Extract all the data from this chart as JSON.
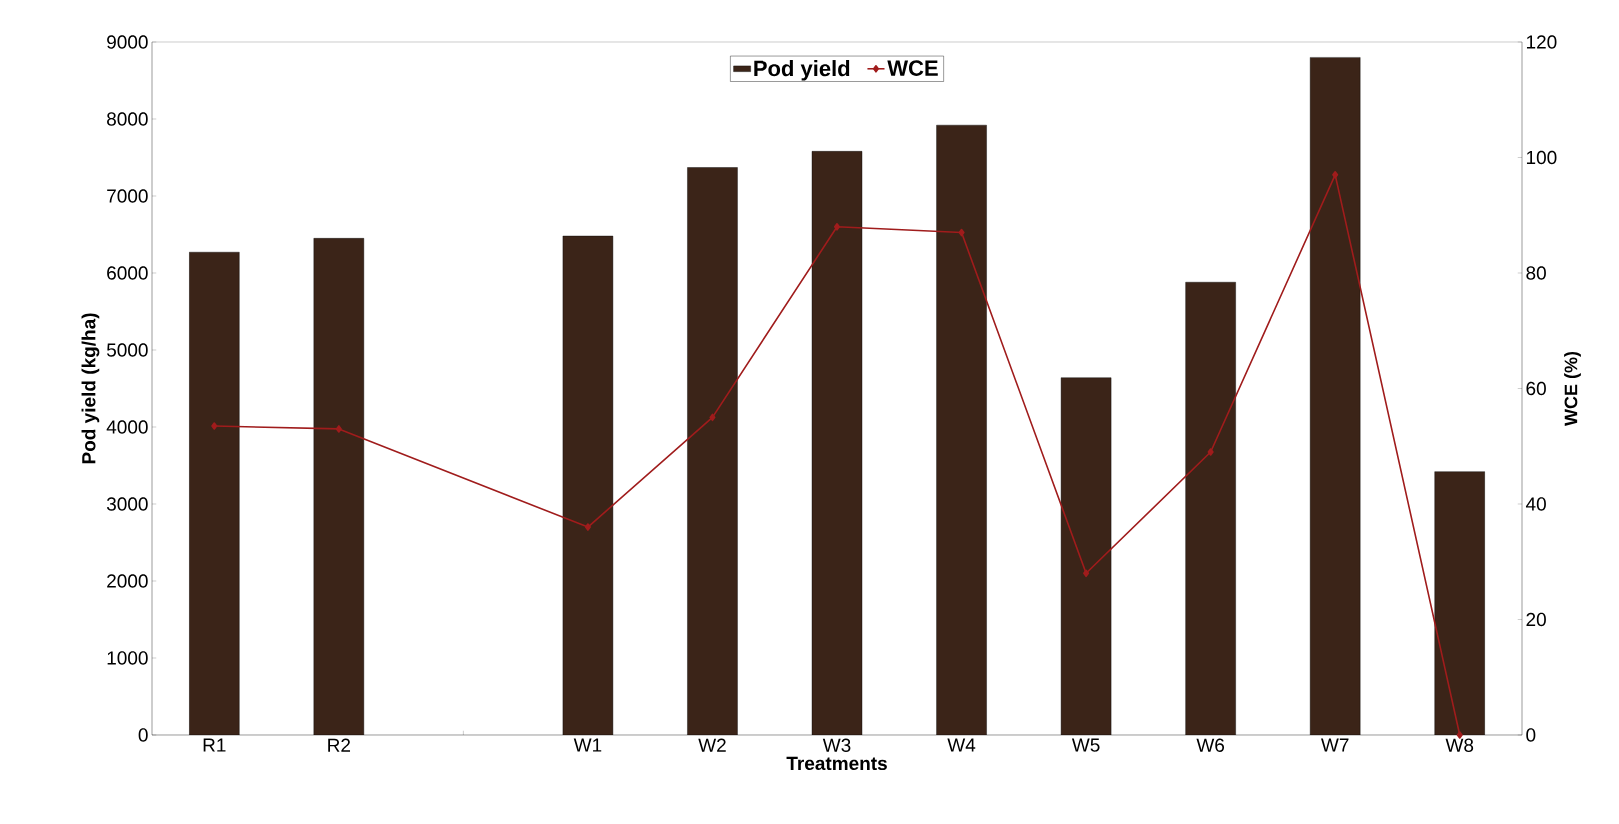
{
  "chart_data": {
    "type": "bar",
    "xlabel": "Treatments",
    "ylabel": "Pod yield (kg/ha)",
    "y2label": "WCE (%)",
    "categories": [
      "R1",
      "R2",
      null,
      "W1",
      "W2",
      "W3",
      "W4",
      "W5",
      "W6",
      "W7",
      "W8"
    ],
    "series": [
      {
        "name": "Pod yield",
        "color": "#3b2418",
        "values": [
          6270,
          6450,
          null,
          6480,
          7370,
          7580,
          7920,
          4640,
          5880,
          8800,
          3420
        ]
      },
      {
        "name": "WCE",
        "type": "line",
        "axis": "y2",
        "color": "#a01c1c",
        "marker": "diamond",
        "values": [
          53.5,
          53,
          null,
          36,
          55,
          88,
          87,
          28,
          49,
          97,
          0
        ]
      }
    ],
    "ylim": [
      0,
      9000
    ],
    "yticks": [
      0,
      1000,
      2000,
      3000,
      4000,
      5000,
      6000,
      7000,
      8000,
      9000
    ],
    "y2lim": [
      0,
      120
    ],
    "y2ticks": [
      0,
      20,
      40,
      60,
      80,
      100,
      120
    ],
    "grid": false,
    "legend": "top"
  }
}
